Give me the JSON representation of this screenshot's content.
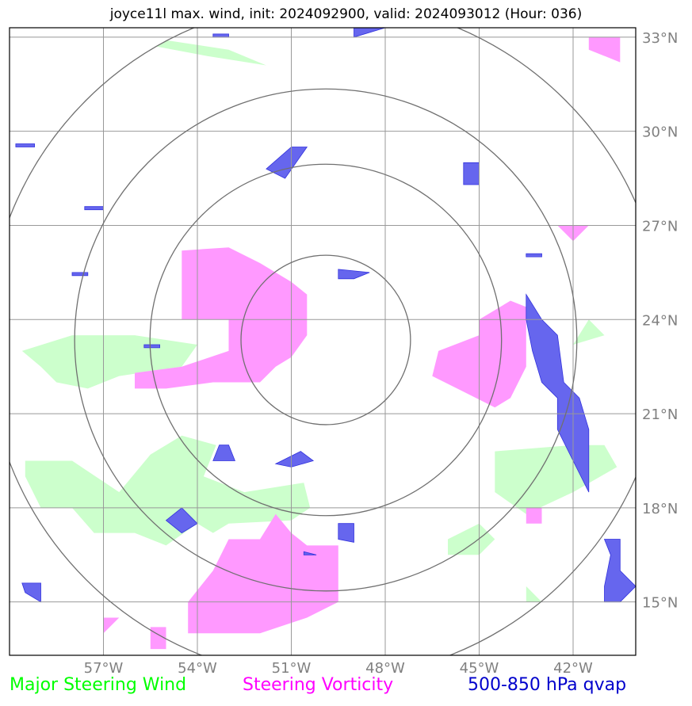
{
  "title": "joyce11l max. wind, init: 2024092900, valid: 2024093012 (Hour: 036)",
  "legend": [
    {
      "label": "Major Steering Wind",
      "color": "#00ff00"
    },
    {
      "label": "Steering Vorticity",
      "color": "#ff00ff"
    },
    {
      "label": "500-850 hPa qvap",
      "color": "#0000cc"
    }
  ],
  "chart_data": {
    "type": "map",
    "projection": "lat-lon",
    "extent": {
      "lon": [
        -60.0,
        -40.0
      ],
      "lat": [
        13.3,
        33.3
      ]
    },
    "grid": true,
    "lon_ticks": [
      {
        "value": -57,
        "label": "57°W"
      },
      {
        "value": -54,
        "label": "54°W"
      },
      {
        "value": -51,
        "label": "51°W"
      },
      {
        "value": -48,
        "label": "48°W"
      },
      {
        "value": -45,
        "label": "45°W"
      },
      {
        "value": -42,
        "label": "42°W"
      }
    ],
    "lat_ticks": [
      {
        "value": 15,
        "label": "15°N"
      },
      {
        "value": 18,
        "label": "18°N"
      },
      {
        "value": 21,
        "label": "21°N"
      },
      {
        "value": 24,
        "label": "24°N"
      },
      {
        "value": 27,
        "label": "27°N"
      },
      {
        "value": 30,
        "label": "30°N"
      },
      {
        "value": 33,
        "label": "33°N"
      }
    ],
    "range_rings": {
      "center": {
        "lon": -49.9,
        "lat": 23.35
      },
      "radii_deg_lat": [
        2.7,
        5.6,
        8.0,
        10.8
      ]
    },
    "layers": [
      {
        "name": "Major Steering Wind",
        "color": "#ccffcc",
        "polygons": [
          [
            [
              -55.0,
              32.9
            ],
            [
              -53.0,
              32.6
            ],
            [
              -51.8,
              32.1
            ],
            [
              -53.7,
              32.4
            ],
            [
              -55.3,
              32.7
            ]
          ],
          [
            [
              -59.6,
              23.0
            ],
            [
              -58.0,
              23.5
            ],
            [
              -56.0,
              23.5
            ],
            [
              -54.0,
              23.2
            ],
            [
              -54.5,
              22.5
            ],
            [
              -56.5,
              22.2
            ],
            [
              -57.5,
              21.8
            ],
            [
              -58.5,
              22.0
            ],
            [
              -59.0,
              22.5
            ]
          ],
          [
            [
              -59.5,
              19.5
            ],
            [
              -58.0,
              19.5
            ],
            [
              -56.5,
              18.5
            ],
            [
              -55.5,
              19.7
            ],
            [
              -54.5,
              20.3
            ],
            [
              -53.4,
              20.0
            ],
            [
              -53.8,
              19.0
            ],
            [
              -52.5,
              18.5
            ],
            [
              -50.6,
              18.8
            ],
            [
              -50.4,
              18.0
            ],
            [
              -51.0,
              17.6
            ],
            [
              -53.0,
              17.5
            ],
            [
              -53.5,
              17.2
            ],
            [
              -54.0,
              17.5
            ],
            [
              -55.0,
              16.8
            ],
            [
              -56.0,
              17.2
            ],
            [
              -57.3,
              17.2
            ],
            [
              -58.0,
              18.0
            ],
            [
              -59.0,
              18.0
            ],
            [
              -59.5,
              19.0
            ]
          ],
          [
            [
              -44.5,
              19.8
            ],
            [
              -42.0,
              20.0
            ],
            [
              -41.0,
              20.0
            ],
            [
              -40.6,
              19.3
            ],
            [
              -42.0,
              18.5
            ],
            [
              -43.5,
              17.8
            ],
            [
              -44.5,
              18.5
            ]
          ],
          [
            [
              -45.0,
              17.5
            ],
            [
              -44.5,
              17.0
            ],
            [
              -45.0,
              16.5
            ],
            [
              -46.0,
              16.5
            ],
            [
              -46.0,
              17.0
            ]
          ],
          [
            [
              -43.5,
              15.5
            ],
            [
              -43.0,
              15.0
            ],
            [
              -43.5,
              15.0
            ]
          ],
          [
            [
              -42.0,
              23.2
            ],
            [
              -41.0,
              23.5
            ],
            [
              -41.5,
              24.0
            ]
          ]
        ]
      },
      {
        "name": "Steering Vorticity",
        "color": "#ff99ff",
        "polygons": [
          [
            [
              -54.5,
              26.2
            ],
            [
              -53.0,
              26.3
            ],
            [
              -52.0,
              25.8
            ],
            [
              -51.0,
              25.2
            ],
            [
              -50.5,
              24.8
            ],
            [
              -50.5,
              23.5
            ],
            [
              -51.0,
              22.8
            ],
            [
              -51.5,
              22.5
            ],
            [
              -52.0,
              22.0
            ],
            [
              -53.5,
              22.0
            ],
            [
              -55.0,
              21.8
            ],
            [
              -56.0,
              21.8
            ],
            [
              -56.0,
              22.3
            ],
            [
              -54.5,
              22.5
            ],
            [
              -53.0,
              23.0
            ],
            [
              -53.0,
              24.0
            ],
            [
              -54.5,
              24.0
            ]
          ],
          [
            [
              -51.5,
              17.8
            ],
            [
              -51.0,
              17.2
            ],
            [
              -50.5,
              16.8
            ],
            [
              -49.5,
              16.8
            ],
            [
              -49.5,
              15.0
            ],
            [
              -50.5,
              14.5
            ],
            [
              -52.0,
              14.0
            ],
            [
              -54.3,
              14.0
            ],
            [
              -54.3,
              15.0
            ],
            [
              -53.5,
              16.0
            ],
            [
              -53.0,
              17.0
            ],
            [
              -52.0,
              17.0
            ]
          ],
          [
            [
              -44.0,
              24.6
            ],
            [
              -43.5,
              24.4
            ],
            [
              -43.5,
              22.5
            ],
            [
              -44.0,
              21.5
            ],
            [
              -44.5,
              21.2
            ],
            [
              -45.5,
              21.7
            ],
            [
              -46.5,
              22.2
            ],
            [
              -46.3,
              23.0
            ],
            [
              -45.0,
              23.5
            ],
            [
              -45.0,
              24.0
            ]
          ],
          [
            [
              -41.5,
              33.0
            ],
            [
              -40.5,
              33.0
            ],
            [
              -40.5,
              32.2
            ],
            [
              -41.5,
              32.6
            ]
          ],
          [
            [
              -42.5,
              27.0
            ],
            [
              -41.5,
              27.0
            ],
            [
              -42.0,
              26.5
            ]
          ],
          [
            [
              -43.5,
              18.0
            ],
            [
              -43.0,
              18.0
            ],
            [
              -43.0,
              17.5
            ],
            [
              -43.5,
              17.5
            ]
          ],
          [
            [
              -55.5,
              14.2
            ],
            [
              -55.0,
              14.2
            ],
            [
              -55.0,
              13.5
            ],
            [
              -55.5,
              13.5
            ]
          ],
          [
            [
              -57.0,
              14.5
            ],
            [
              -56.5,
              14.5
            ],
            [
              -57.0,
              14.0
            ]
          ]
        ]
      },
      {
        "name": "500-850 hPa qvap",
        "color": "#6666ee",
        "polygons": [
          [
            [
              -51.0,
              29.5
            ],
            [
              -50.5,
              29.5
            ],
            [
              -51.2,
              28.5
            ],
            [
              -51.8,
              28.8
            ]
          ],
          [
            [
              -49.0,
              33.3
            ],
            [
              -48.0,
              33.3
            ],
            [
              -49.0,
              33.0
            ]
          ],
          [
            [
              -45.5,
              29.0
            ],
            [
              -45.0,
              29.0
            ],
            [
              -45.0,
              28.3
            ],
            [
              -45.5,
              28.3
            ]
          ],
          [
            [
              -49.5,
              25.6
            ],
            [
              -48.5,
              25.5
            ],
            [
              -49.0,
              25.3
            ],
            [
              -49.5,
              25.3
            ]
          ],
          [
            [
              -43.5,
              24.8
            ],
            [
              -43.0,
              24.0
            ],
            [
              -42.5,
              23.5
            ],
            [
              -42.3,
              22.0
            ],
            [
              -41.8,
              21.5
            ],
            [
              -41.5,
              20.5
            ],
            [
              -41.5,
              18.5
            ],
            [
              -42.0,
              19.5
            ],
            [
              -42.5,
              20.5
            ],
            [
              -42.5,
              21.5
            ],
            [
              -43.0,
              22.0
            ],
            [
              -43.3,
              23.0
            ],
            [
              -43.5,
              24.0
            ]
          ],
          [
            [
              -53.3,
              20.0
            ],
            [
              -53.0,
              20.0
            ],
            [
              -52.8,
              19.5
            ],
            [
              -53.5,
              19.5
            ]
          ],
          [
            [
              -50.7,
              19.8
            ],
            [
              -50.3,
              19.5
            ],
            [
              -51.0,
              19.3
            ],
            [
              -51.5,
              19.4
            ]
          ],
          [
            [
              -54.5,
              18.0
            ],
            [
              -54.0,
              17.5
            ],
            [
              -54.5,
              17.2
            ],
            [
              -55.0,
              17.6
            ]
          ],
          [
            [
              -49.5,
              17.5
            ],
            [
              -49.0,
              17.5
            ],
            [
              -49.0,
              16.9
            ],
            [
              -49.5,
              17.0
            ]
          ],
          [
            [
              -50.6,
              16.6
            ],
            [
              -50.2,
              16.5
            ],
            [
              -50.6,
              16.5
            ]
          ],
          [
            [
              -59.6,
              15.6
            ],
            [
              -59.0,
              15.6
            ],
            [
              -59.0,
              15.0
            ],
            [
              -59.5,
              15.3
            ]
          ],
          [
            [
              -41.0,
              17.0
            ],
            [
              -40.5,
              17.0
            ],
            [
              -40.5,
              16.0
            ],
            [
              -40.0,
              15.5
            ],
            [
              -40.5,
              15.0
            ],
            [
              -41.0,
              15.0
            ],
            [
              -41.0,
              15.5
            ],
            [
              -40.8,
              16.5
            ]
          ],
          [
            [
              -59.8,
              29.6
            ],
            [
              -59.2,
              29.6
            ],
            [
              -59.2,
              29.5
            ],
            [
              -59.8,
              29.5
            ]
          ],
          [
            [
              -57.6,
              27.6
            ],
            [
              -57.0,
              27.6
            ],
            [
              -57.0,
              27.5
            ],
            [
              -57.6,
              27.5
            ]
          ],
          [
            [
              -58.0,
              25.5
            ],
            [
              -57.5,
              25.5
            ],
            [
              -57.5,
              25.4
            ],
            [
              -58.0,
              25.4
            ]
          ],
          [
            [
              -55.7,
              23.2
            ],
            [
              -55.2,
              23.2
            ],
            [
              -55.2,
              23.1
            ],
            [
              -55.7,
              23.1
            ]
          ],
          [
            [
              -43.5,
              26.1
            ],
            [
              -43.0,
              26.1
            ],
            [
              -43.0,
              26.0
            ],
            [
              -43.5,
              26.0
            ]
          ],
          [
            [
              -53.5,
              33.1
            ],
            [
              -53.0,
              33.1
            ],
            [
              -53.0,
              33.0
            ],
            [
              -53.5,
              33.0
            ]
          ]
        ]
      }
    ]
  }
}
